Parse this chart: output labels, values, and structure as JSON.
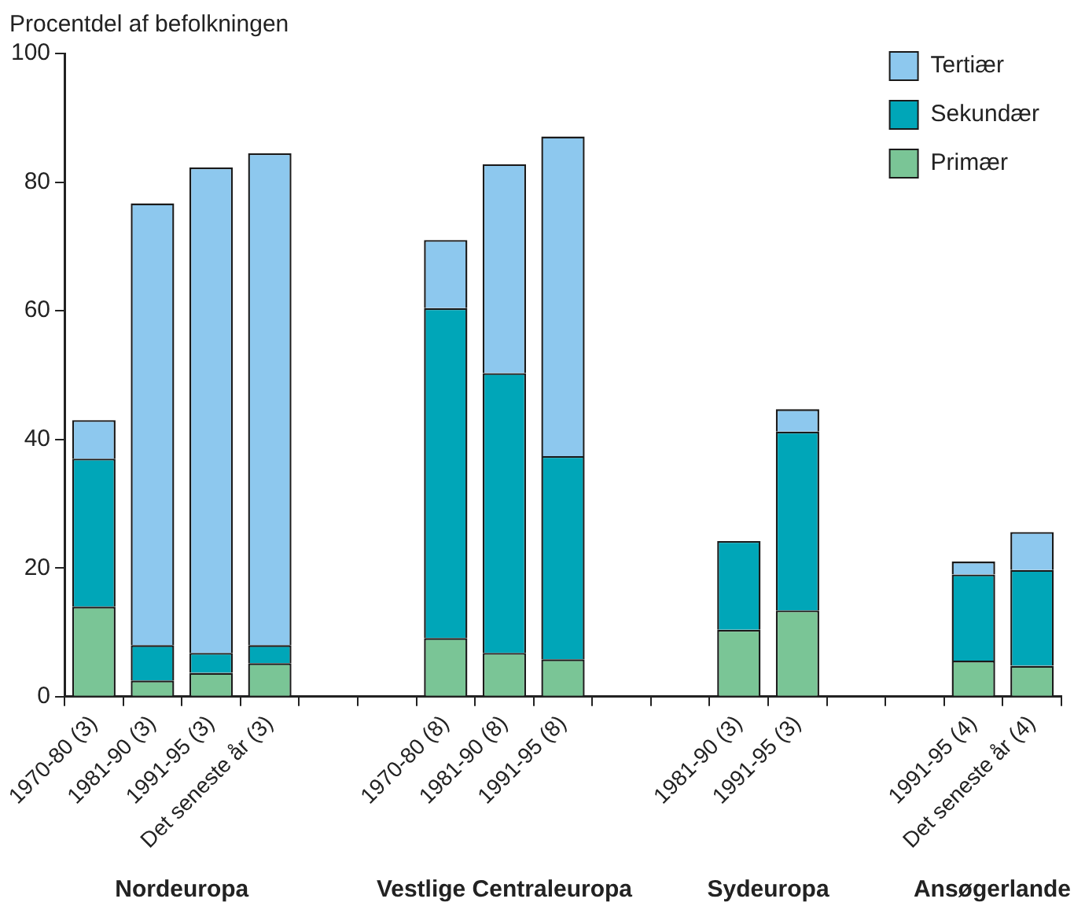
{
  "chart_data": {
    "type": "bar",
    "stacked": true,
    "ylabel": "Procentdel af befolkningen",
    "categories": [
      "1970-80 (3)",
      "1981-90 (3)",
      "1991-95 (3)",
      "Det seneste år (3)",
      null,
      null,
      "1970-80 (8)",
      "1981-90 (8)",
      "1991-95 (8)",
      null,
      null,
      "1981-90 (3)",
      "1991-95 (3)",
      null,
      null,
      "1991-95 (4)",
      "Det seneste år (4)"
    ],
    "series": [
      {
        "name": "Primær",
        "color": "#7ac596",
        "values": [
          14,
          2.5,
          3.7,
          5.2,
          null,
          null,
          9.1,
          6.8,
          5.8,
          null,
          null,
          10.4,
          13.4,
          null,
          null,
          5.6,
          4.8
        ]
      },
      {
        "name": "Sekundær",
        "color": "#00a6b8",
        "values": [
          23,
          5.5,
          3.1,
          2.8,
          null,
          null,
          51.3,
          43.5,
          31.6,
          null,
          null,
          13.8,
          27.8,
          null,
          null,
          13.4,
          14.9
        ]
      },
      {
        "name": "Tertiær",
        "color": "#8dc8ee",
        "values": [
          6,
          68.7,
          75.5,
          76.5,
          null,
          null,
          10.6,
          32.5,
          49.7,
          null,
          null,
          null,
          3.5,
          null,
          null,
          2,
          5.9
        ]
      }
    ],
    "ylim": [
      0,
      100
    ],
    "yticks": [
      0,
      20,
      40,
      60,
      80,
      100
    ],
    "grid": false,
    "legend": "top right",
    "annotations": [
      "Nordeuropa",
      "Vestlige Centraleuropa",
      "Sydeuropa",
      "Ansøgerlande"
    ]
  }
}
